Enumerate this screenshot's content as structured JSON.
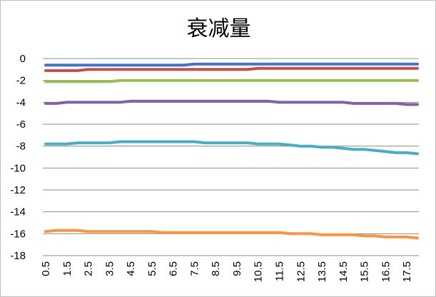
{
  "chart_data": {
    "type": "line",
    "title": "衰减量",
    "xlabel": "",
    "ylabel": "",
    "x": [
      0.5,
      1,
      1.5,
      2,
      2.5,
      3,
      3.5,
      4,
      4.5,
      5,
      5.5,
      6,
      6.5,
      7,
      7.5,
      8,
      8.5,
      9,
      9.5,
      10,
      10.5,
      11,
      11.5,
      12,
      12.5,
      13,
      13.5,
      14,
      14.5,
      15,
      15.5,
      16,
      16.5,
      17,
      17.5,
      18
    ],
    "x_tick_labels": [
      "0.5",
      "1.5",
      "2.5",
      "3.5",
      "4.5",
      "5.5",
      "6.5",
      "7.5",
      "8.5",
      "9.5",
      "10.5",
      "11.5",
      "12.5",
      "13.5",
      "14.5",
      "15.5",
      "16.5",
      "17.5"
    ],
    "y_ticks": [
      0,
      -2,
      -4,
      -6,
      -8,
      -10,
      -12,
      -14,
      -16,
      -18
    ],
    "ylim": [
      -18,
      0
    ],
    "grid": true,
    "legend": "none",
    "series": [
      {
        "color": "#4472c4",
        "values": [
          -0.6,
          -0.6,
          -0.6,
          -0.6,
          -0.6,
          -0.6,
          -0.6,
          -0.6,
          -0.6,
          -0.6,
          -0.6,
          -0.6,
          -0.6,
          -0.6,
          -0.5,
          -0.5,
          -0.5,
          -0.5,
          -0.5,
          -0.5,
          -0.5,
          -0.5,
          -0.5,
          -0.5,
          -0.5,
          -0.5,
          -0.5,
          -0.5,
          -0.5,
          -0.5,
          -0.5,
          -0.5,
          -0.5,
          -0.5,
          -0.5,
          -0.5
        ]
      },
      {
        "color": "#c0504d",
        "values": [
          -1.1,
          -1.1,
          -1.1,
          -1.1,
          -1.0,
          -1.0,
          -1.0,
          -1.0,
          -1.0,
          -1.0,
          -1.0,
          -1.0,
          -1.0,
          -1.0,
          -1.0,
          -1.0,
          -1.0,
          -1.0,
          -1.0,
          -1.0,
          -0.9,
          -0.9,
          -0.9,
          -0.9,
          -0.9,
          -0.9,
          -0.9,
          -0.9,
          -0.9,
          -0.9,
          -0.9,
          -0.9,
          -0.9,
          -0.9,
          -0.9,
          -0.9
        ]
      },
      {
        "color": "#9bbb59",
        "values": [
          -2.1,
          -2.1,
          -2.1,
          -2.1,
          -2.1,
          -2.1,
          -2.1,
          -2.0,
          -2.0,
          -2.0,
          -2.0,
          -2.0,
          -2.0,
          -2.0,
          -2.0,
          -2.0,
          -2.0,
          -2.0,
          -2.0,
          -2.0,
          -2.0,
          -2.0,
          -2.0,
          -2.0,
          -2.0,
          -2.0,
          -2.0,
          -2.0,
          -2.0,
          -2.0,
          -2.0,
          -2.0,
          -2.0,
          -2.0,
          -2.0,
          -2.0
        ]
      },
      {
        "color": "#8064a2",
        "values": [
          -4.1,
          -4.1,
          -4.0,
          -4.0,
          -4.0,
          -4.0,
          -4.0,
          -4.0,
          -3.9,
          -3.9,
          -3.9,
          -3.9,
          -3.9,
          -3.9,
          -3.9,
          -3.9,
          -3.9,
          -3.9,
          -3.9,
          -3.9,
          -3.9,
          -3.9,
          -4.0,
          -4.0,
          -4.0,
          -4.0,
          -4.0,
          -4.0,
          -4.0,
          -4.1,
          -4.1,
          -4.1,
          -4.1,
          -4.1,
          -4.2,
          -4.2
        ]
      },
      {
        "color": "#4bacc6",
        "values": [
          -7.8,
          -7.8,
          -7.8,
          -7.7,
          -7.7,
          -7.7,
          -7.7,
          -7.6,
          -7.6,
          -7.6,
          -7.6,
          -7.6,
          -7.6,
          -7.6,
          -7.6,
          -7.7,
          -7.7,
          -7.7,
          -7.7,
          -7.7,
          -7.8,
          -7.8,
          -7.8,
          -7.9,
          -8.0,
          -8.0,
          -8.1,
          -8.1,
          -8.2,
          -8.3,
          -8.3,
          -8.4,
          -8.5,
          -8.6,
          -8.6,
          -8.7
        ]
      },
      {
        "color": "#f79646",
        "values": [
          -15.8,
          -15.7,
          -15.7,
          -15.7,
          -15.8,
          -15.8,
          -15.8,
          -15.8,
          -15.8,
          -15.8,
          -15.8,
          -15.9,
          -15.9,
          -15.9,
          -15.9,
          -15.9,
          -15.9,
          -15.9,
          -15.9,
          -15.9,
          -15.9,
          -15.9,
          -15.9,
          -16.0,
          -16.0,
          -16.0,
          -16.1,
          -16.1,
          -16.1,
          -16.1,
          -16.2,
          -16.2,
          -16.3,
          -16.3,
          -16.3,
          -16.4
        ]
      }
    ]
  }
}
